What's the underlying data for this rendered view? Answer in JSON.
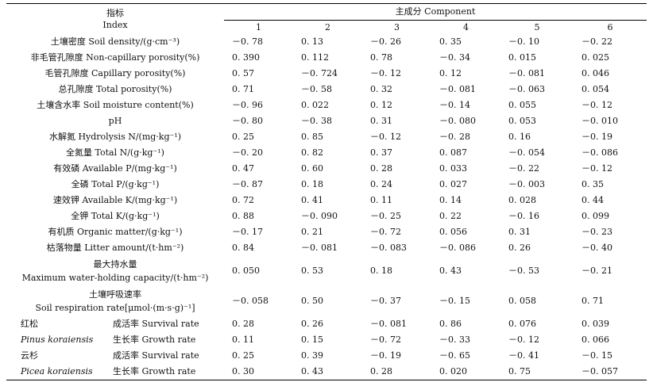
{
  "header": {
    "index_cn": "指标",
    "index_en": "Index",
    "component_title": "主成分 Component",
    "components": [
      "1",
      "2",
      "3",
      "4",
      "5",
      "6"
    ]
  },
  "rows": [
    {
      "label": "土壤密度 Soil density/(g·cm⁻³)",
      "values": [
        "－0. 78",
        "0. 13",
        "－0. 26",
        "0. 35",
        "－0. 10",
        "－0. 22"
      ]
    },
    {
      "label": "非毛管孔隙度 Non-capillary porosity(%)",
      "values": [
        "0. 390",
        "0. 112",
        "0. 78",
        "－0. 34",
        "0. 015",
        "0. 025"
      ]
    },
    {
      "label": "毛管孔隙度 Capillary porosity(%)",
      "values": [
        "0. 57",
        "－0. 724",
        "－0. 12",
        "0. 12",
        "－0. 081",
        "0. 046"
      ]
    },
    {
      "label": "总孔隙度 Total porosity(%)",
      "values": [
        "0. 71",
        "－0. 58",
        "0. 32",
        "－0. 081",
        "－0. 063",
        "0. 054"
      ]
    },
    {
      "label": "土壤含水率 Soil moisture content(%)",
      "values": [
        "－0. 96",
        "0. 022",
        "0. 12",
        "－0. 14",
        "0. 055",
        "－0. 12"
      ]
    },
    {
      "label": "pH",
      "values": [
        "－0. 80",
        "－0. 38",
        "0. 31",
        "－0. 080",
        "0. 053",
        "－0. 010"
      ]
    },
    {
      "label": "水解氮 Hydrolysis N/(mg·kg⁻¹)",
      "values": [
        "0. 25",
        "0. 85",
        "－0. 12",
        "－0. 28",
        "0. 16",
        "－0. 19"
      ]
    },
    {
      "label": "全氮量 Total N/(g·kg⁻¹)",
      "values": [
        "－0. 20",
        "0. 82",
        "0. 37",
        "0. 087",
        "－0. 054",
        "－0. 086"
      ]
    },
    {
      "label": "有效磷 Available P/(mg·kg⁻¹)",
      "values": [
        "0. 47",
        "0. 60",
        "0. 28",
        "0. 033",
        "－0. 22",
        "－0. 12"
      ]
    },
    {
      "label": "全磷 Total P/(g·kg⁻¹)",
      "values": [
        "－0. 87",
        "0. 18",
        "0. 24",
        "0. 027",
        "－0. 003",
        "0. 35"
      ]
    },
    {
      "label": "速效钾 Available K/(mg·kg⁻¹)",
      "values": [
        "0. 72",
        "0. 41",
        "0. 11",
        "0. 14",
        "0. 028",
        "0. 44"
      ]
    },
    {
      "label": "全钾 Total K/(g·kg⁻¹)",
      "values": [
        "0. 88",
        "－0. 090",
        "－0. 25",
        "0. 22",
        "－0. 16",
        "0. 099"
      ]
    },
    {
      "label": "有机质 Organic matter/(g·kg⁻¹)",
      "values": [
        "－0. 17",
        "0. 21",
        "－0. 72",
        "0. 056",
        "0. 31",
        "－0. 23"
      ]
    },
    {
      "label": "枯落物量 Litter amount/(t·hm⁻²)",
      "values": [
        "0. 84",
        "－0. 081",
        "－0. 083",
        "－0. 086",
        "0. 26",
        "－0. 40"
      ]
    }
  ],
  "tall_rows": [
    {
      "label_cn": "最大持水量",
      "label_en": "Maximum water-holding capacity/(t·hm⁻²)",
      "values": [
        "0. 050",
        "0. 53",
        "0. 18",
        "0. 43",
        "－0. 53",
        "－0. 21"
      ]
    },
    {
      "label_cn": "土壤呼吸速率",
      "label_en": "Soil respiration rate[μmol·(m·s·g)⁻¹]",
      "values": [
        "－0. 058",
        "0. 50",
        "－0. 37",
        "－0. 15",
        "0. 058",
        "0. 71"
      ]
    }
  ],
  "species": [
    {
      "name_cn": "红松",
      "name_latin": "Pinus koraiensis",
      "metrics": [
        {
          "label": "成活率 Survival rate",
          "values": [
            "0. 28",
            "0. 26",
            "－0. 081",
            "0. 86",
            "0. 076",
            "0. 039"
          ]
        },
        {
          "label": "生长率 Growth rate",
          "values": [
            "0. 11",
            "0. 15",
            "－0. 72",
            "－0. 33",
            "－0. 12",
            "0. 066"
          ]
        }
      ]
    },
    {
      "name_cn": "云杉",
      "name_latin": "Picea koraiensis",
      "metrics": [
        {
          "label": "成活率 Survival rate",
          "values": [
            "0. 25",
            "0. 39",
            "－0. 19",
            "－0. 65",
            "－0. 41",
            "－0. 15"
          ]
        },
        {
          "label": "生长率 Growth rate",
          "values": [
            "0. 30",
            "0. 43",
            "0. 28",
            "0. 020",
            "0. 75",
            "－0. 057"
          ]
        }
      ]
    }
  ]
}
